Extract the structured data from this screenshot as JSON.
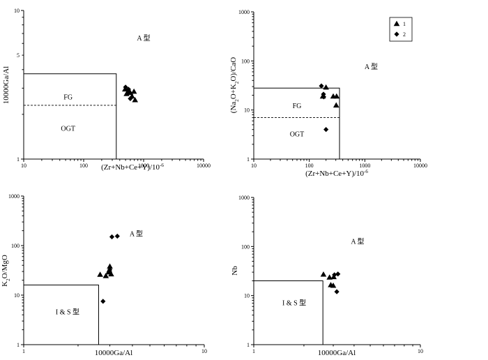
{
  "chart_data": [
    {
      "type": "scatter",
      "xscale": "log",
      "yscale": "log",
      "xlim": [
        10,
        10000
      ],
      "ylim": [
        1,
        10
      ],
      "xlabel": "(Zr+Nb+Ce+Y)/10⁻⁶",
      "ylabel": "10000Ga/Al",
      "xticks": [
        {
          "v": 10,
          "label": "10"
        },
        {
          "v": 100,
          "label": "100"
        },
        {
          "v": 1000,
          "label": "1000"
        },
        {
          "v": 10000,
          "label": "10000"
        }
      ],
      "yticks": [
        {
          "v": 1,
          "label": "1"
        },
        {
          "v": 5,
          "label": "5"
        },
        {
          "v": 10,
          "label": "10"
        }
      ],
      "regions": [
        {
          "label": "A 型",
          "x": 1000,
          "y": 6.5
        },
        {
          "label": "FG",
          "x": 55,
          "y": 2.6
        },
        {
          "label": "OGT",
          "x": 55,
          "y": 1.6
        }
      ],
      "boxes": [
        {
          "x0": 10,
          "x1": 350,
          "y0": 1,
          "y1": 3.75
        }
      ],
      "dashed_lines": [
        {
          "x0": 10,
          "x1": 350,
          "y": 2.3
        }
      ],
      "series": [
        {
          "marker": "triangle",
          "points": [
            [
              490,
              2.95
            ],
            [
              520,
              2.75
            ],
            [
              560,
              2.85
            ],
            [
              600,
              2.8
            ],
            [
              640,
              2.65
            ],
            [
              690,
              2.85
            ],
            [
              720,
              2.5
            ]
          ]
        },
        {
          "marker": "diamond",
          "points": [
            [
              500,
              3.05
            ],
            [
              560,
              2.95
            ],
            [
              600,
              2.55
            ]
          ]
        }
      ]
    },
    {
      "type": "scatter",
      "xscale": "log",
      "yscale": "log",
      "xlim": [
        10,
        10000
      ],
      "ylim": [
        1,
        1000
      ],
      "xlabel": "(Zr+Nb+Ce+Y)/10⁻⁶",
      "ylabel": "(Na₂O+K₂O)/CaO",
      "xticks": [
        {
          "v": 10,
          "label": "10"
        },
        {
          "v": 100,
          "label": "100"
        },
        {
          "v": 1000,
          "label": "1000"
        },
        {
          "v": 10000,
          "label": "10000"
        }
      ],
      "yticks": [
        {
          "v": 1,
          "label": "1"
        },
        {
          "v": 10,
          "label": "10"
        },
        {
          "v": 100,
          "label": "100"
        },
        {
          "v": 1000,
          "label": "1000"
        }
      ],
      "regions": [
        {
          "label": "A 型",
          "x": 1300,
          "y": 75
        },
        {
          "label": "FG",
          "x": 60,
          "y": 12
        },
        {
          "label": "OGT",
          "x": 60,
          "y": 3.2
        }
      ],
      "boxes": [
        {
          "x0": 10,
          "x1": 350,
          "y0": 1,
          "y1": 28
        }
      ],
      "dashed_lines": [
        {
          "x0": 10,
          "x1": 350,
          "y": 7
        }
      ],
      "legend": [
        {
          "marker": "triangle",
          "label": "1"
        },
        {
          "marker": "diamond",
          "label": "2"
        }
      ],
      "series": [
        {
          "name": "1",
          "marker": "triangle",
          "points": [
            [
              175,
              19
            ],
            [
              200,
              29
            ],
            [
              270,
              19
            ],
            [
              310,
              19
            ],
            [
              305,
              12.5
            ]
          ]
        },
        {
          "name": "2",
          "marker": "diamond",
          "points": [
            [
              165,
              31
            ],
            [
              180,
              21
            ],
            [
              182,
              18.5
            ],
            [
              200,
              4
            ]
          ]
        }
      ]
    },
    {
      "type": "scatter",
      "xscale": "log",
      "yscale": "log",
      "xlim": [
        1,
        10
      ],
      "ylim": [
        1,
        1000
      ],
      "xlabel": "10000Ga/Al",
      "ylabel": "K₂O/MgO",
      "xticks": [
        {
          "v": 1,
          "label": "1"
        },
        {
          "v": 10,
          "label": "10"
        }
      ],
      "yticks": [
        {
          "v": 1,
          "label": "1"
        },
        {
          "v": 10,
          "label": "10"
        },
        {
          "v": 100,
          "label": "100"
        },
        {
          "v": 1000,
          "label": "1000"
        }
      ],
      "regions": [
        {
          "label": "A 型",
          "x": 4.2,
          "y": 170
        },
        {
          "label": "I & S 型",
          "x": 1.75,
          "y": 4.5
        }
      ],
      "boxes": [
        {
          "x0": 1,
          "x1": 2.6,
          "y0": 1,
          "y1": 16
        }
      ],
      "dashed_lines": [],
      "series": [
        {
          "marker": "triangle",
          "points": [
            [
              2.65,
              26
            ],
            [
              2.85,
              24.5
            ],
            [
              2.95,
              29
            ],
            [
              2.98,
              32
            ],
            [
              3.05,
              26.5
            ],
            [
              3.0,
              38
            ]
          ]
        },
        {
          "marker": "diamond",
          "points": [
            [
              3.08,
              150
            ],
            [
              3.3,
              155
            ],
            [
              2.75,
              7.5
            ],
            [
              3.0,
              32.5
            ]
          ]
        }
      ]
    },
    {
      "type": "scatter",
      "xscale": "log",
      "yscale": "log",
      "xlim": [
        1,
        10
      ],
      "ylim": [
        1,
        1000
      ],
      "xlabel": "10000Ga/Al",
      "ylabel": "Nb",
      "xticks": [
        {
          "v": 1,
          "label": "1"
        },
        {
          "v": 10,
          "label": "10"
        }
      ],
      "yticks": [
        {
          "v": 1,
          "label": "1"
        },
        {
          "v": 10,
          "label": "10"
        },
        {
          "v": 100,
          "label": "100"
        },
        {
          "v": 1000,
          "label": "1000"
        }
      ],
      "regions": [
        {
          "label": "A 型",
          "x": 4.2,
          "y": 125
        },
        {
          "label": "I & S 型",
          "x": 1.75,
          "y": 7
        }
      ],
      "boxes": [
        {
          "x0": 1,
          "x1": 2.6,
          "y0": 1,
          "y1": 20
        }
      ],
      "dashed_lines": [],
      "series": [
        {
          "marker": "triangle",
          "points": [
            [
              2.62,
              27
            ],
            [
              2.85,
              23.5
            ],
            [
              2.9,
              16.5
            ],
            [
              3.0,
              16
            ],
            [
              3.02,
              24
            ]
          ]
        },
        {
          "marker": "diamond",
          "points": [
            [
              3.05,
              26.5
            ],
            [
              3.2,
              27.5
            ],
            [
              3.15,
              12
            ]
          ]
        }
      ]
    }
  ]
}
